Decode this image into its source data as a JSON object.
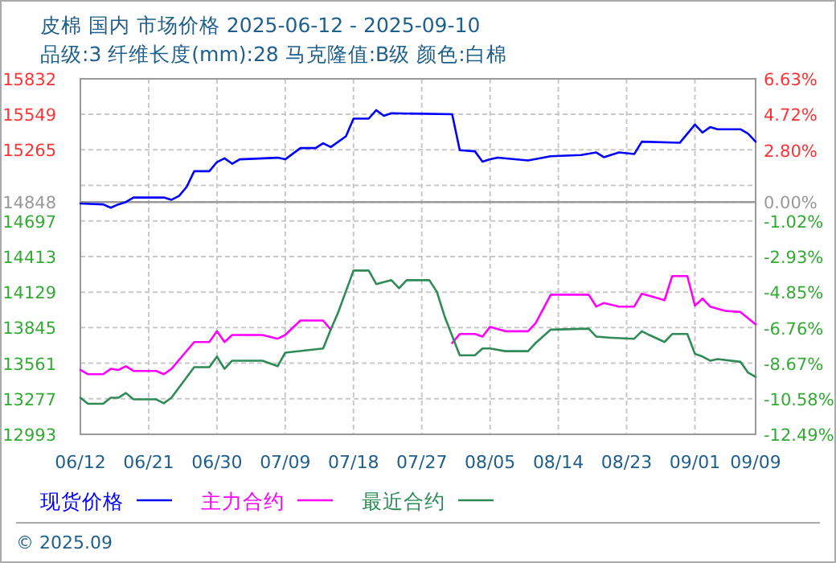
{
  "chart_data": {
    "type": "line",
    "title": "皮棉 国内 市场价格 2025-06-12 - 2025-09-10",
    "subtitle": "品级:3 纤维长度(mm):28 马克隆值:B级 颜色:白棉",
    "xlim": [
      "2025-06-12",
      "2025-09-09"
    ],
    "xticks": [
      {
        "value": "2025-06-12",
        "label": "06/12"
      },
      {
        "value": "2025-06-21",
        "label": "06/21"
      },
      {
        "value": "2025-06-30",
        "label": "06/30"
      },
      {
        "value": "2025-07-09",
        "label": "07/09"
      },
      {
        "value": "2025-07-18",
        "label": "07/18"
      },
      {
        "value": "2025-07-27",
        "label": "07/27"
      },
      {
        "value": "2025-08-05",
        "label": "08/05"
      },
      {
        "value": "2025-08-14",
        "label": "08/14"
      },
      {
        "value": "2025-08-23",
        "label": "08/23"
      },
      {
        "value": "2025-09-01",
        "label": "09/01"
      },
      {
        "value": "2025-09-09",
        "label": "09/09"
      }
    ],
    "ylim": [
      12993,
      15832
    ],
    "yticks": [
      12993,
      13277,
      13561,
      13845,
      14129,
      14413,
      14697,
      14848,
      {
        "value": 14981,
        "label": null
      },
      15265,
      15549,
      15832
    ],
    "y2lim": [
      -12.49,
      6.63
    ],
    "y2ticks": [
      {
        "value": -12.49,
        "label": "-12.49%"
      },
      {
        "value": -10.58,
        "label": "-10.58%"
      },
      {
        "value": -8.67,
        "label": "-8.67%"
      },
      {
        "value": -6.76,
        "label": "-6.76%"
      },
      {
        "value": -4.85,
        "label": "-4.85%"
      },
      {
        "value": -2.93,
        "label": "-2.93%"
      },
      {
        "value": -1.02,
        "label": "-1.02%"
      },
      {
        "value": 0,
        "label": "0.00%"
      },
      {
        "value": 2.8,
        "label": "2.80%"
      },
      {
        "value": 4.72,
        "label": "4.72%"
      },
      {
        "value": 6.63,
        "label": "6.63%"
      }
    ],
    "grid": true,
    "legend": "bottom",
    "line_style": "solid",
    "ref_lines": [
      {
        "axis": "y",
        "value": 14848,
        "color": "#999999",
        "line_style": "solid"
      }
    ],
    "annotations": [
      "© 2025.09"
    ],
    "series": [
      {
        "name": "现货价格",
        "color": "#0000ff",
        "x": [
          "2025-06-12",
          "2025-06-15",
          "2025-06-16",
          "2025-06-17",
          "2025-06-18",
          "2025-06-19",
          "2025-06-23",
          "2025-06-24",
          "2025-06-25",
          "2025-06-26",
          "2025-06-27",
          "2025-06-29",
          "2025-06-30",
          "2025-07-01",
          "2025-07-02",
          "2025-07-03",
          "2025-07-08",
          "2025-07-09",
          "2025-07-11",
          "2025-07-13",
          "2025-07-14",
          "2025-07-15",
          "2025-07-17",
          "2025-07-18",
          "2025-07-20",
          "2025-07-21",
          "2025-07-22",
          "2025-07-23",
          "2025-07-31",
          "2025-08-01",
          "2025-08-03",
          "2025-08-04",
          "2025-08-05",
          "2025-08-06",
          "2025-08-10",
          "2025-08-13",
          "2025-08-17",
          "2025-08-19",
          "2025-08-20",
          "2025-08-22",
          "2025-08-24",
          "2025-08-25",
          "2025-08-30",
          "2025-09-01",
          "2025-09-02",
          "2025-09-03",
          "2025-09-04",
          "2025-09-07",
          "2025-09-08",
          "2025-09-09"
        ],
        "values": [
          14836,
          14829,
          14803,
          14829,
          14848,
          14884,
          14884,
          14866,
          14897,
          14968,
          15094,
          15094,
          15167,
          15197,
          15154,
          15189,
          15202,
          15189,
          15279,
          15279,
          15317,
          15287,
          15373,
          15514,
          15514,
          15582,
          15536,
          15557,
          15549,
          15262,
          15253,
          15171,
          15189,
          15202,
          15180,
          15214,
          15223,
          15244,
          15206,
          15244,
          15231,
          15330,
          15321,
          15467,
          15403,
          15446,
          15429,
          15429,
          15394,
          15330
        ]
      },
      {
        "name": "主力合约",
        "color": "#ff00ff",
        "x": [
          "2025-06-12",
          "2025-06-13",
          "2025-06-15",
          "2025-06-16",
          "2025-06-17",
          "2025-06-18",
          "2025-06-19",
          "2025-06-22",
          "2025-06-23",
          "2025-06-24",
          "2025-06-27",
          "2025-06-29",
          "2025-06-30",
          "2025-07-01",
          "2025-07-02",
          "2025-07-06",
          "2025-07-08",
          "2025-07-09",
          "2025-07-11",
          "2025-07-14",
          "2025-07-15",
          "2025-07-16",
          "2025-07-31",
          "2025-08-01",
          "2025-08-03",
          "2025-08-04",
          "2025-08-05",
          "2025-08-07",
          "2025-08-10",
          "2025-08-11",
          "2025-08-13",
          "2025-08-18",
          "2025-08-19",
          "2025-08-20",
          "2025-08-22",
          "2025-08-24",
          "2025-08-25",
          "2025-08-26",
          "2025-08-28",
          "2025-08-29",
          "2025-08-31",
          "2025-09-01",
          "2025-09-02",
          "2025-09-03",
          "2025-09-05",
          "2025-09-07",
          "2025-09-09"
        ],
        "values": [
          13507,
          13473,
          13473,
          13516,
          13507,
          13537,
          13499,
          13499,
          13473,
          13516,
          13730,
          13730,
          13816,
          13730,
          13786,
          13786,
          13756,
          13786,
          13902,
          13902,
          13829,
          null,
          13722,
          13794,
          13794,
          13773,
          13851,
          13816,
          13816,
          13880,
          14108,
          14108,
          14013,
          14042,
          14013,
          14013,
          14116,
          14099,
          14064,
          14257,
          14257,
          14021,
          14077,
          14013,
          13979,
          13970,
          13872
        ]
      },
      {
        "name": "最近合约",
        "color": "#2e8b57",
        "x": [
          "2025-06-12",
          "2025-06-13",
          "2025-06-15",
          "2025-06-16",
          "2025-06-17",
          "2025-06-18",
          "2025-06-19",
          "2025-06-22",
          "2025-06-23",
          "2025-06-24",
          "2025-06-27",
          "2025-06-29",
          "2025-06-30",
          "2025-07-01",
          "2025-07-02",
          "2025-07-06",
          "2025-07-08",
          "2025-07-09",
          "2025-07-14",
          "2025-07-15",
          "2025-07-16",
          "2025-07-18",
          "2025-07-20",
          "2025-07-21",
          "2025-07-23",
          "2025-07-24",
          "2025-07-25",
          "2025-07-28",
          "2025-07-29",
          "2025-07-30",
          "2025-08-01",
          "2025-08-03",
          "2025-08-04",
          "2025-08-05",
          "2025-08-07",
          "2025-08-10",
          "2025-08-11",
          "2025-08-13",
          "2025-08-18",
          "2025-08-19",
          "2025-08-21",
          "2025-08-24",
          "2025-08-25",
          "2025-08-26",
          "2025-08-28",
          "2025-08-29",
          "2025-08-31",
          "2025-09-01",
          "2025-09-02",
          "2025-09-03",
          "2025-09-04",
          "2025-09-07",
          "2025-09-08",
          "2025-09-09"
        ],
        "values": [
          13285,
          13237,
          13237,
          13285,
          13285,
          13323,
          13272,
          13272,
          13241,
          13285,
          13529,
          13529,
          13614,
          13516,
          13581,
          13581,
          13537,
          13645,
          13679,
          13829,
          13970,
          14301,
          14301,
          14193,
          14224,
          14160,
          14224,
          14224,
          14129,
          13936,
          13624,
          13624,
          13679,
          13679,
          13657,
          13657,
          13722,
          13829,
          13837,
          13773,
          13764,
          13756,
          13816,
          13786,
          13730,
          13794,
          13794,
          13636,
          13614,
          13581,
          13593,
          13572,
          13486,
          13452
        ]
      }
    ]
  }
}
